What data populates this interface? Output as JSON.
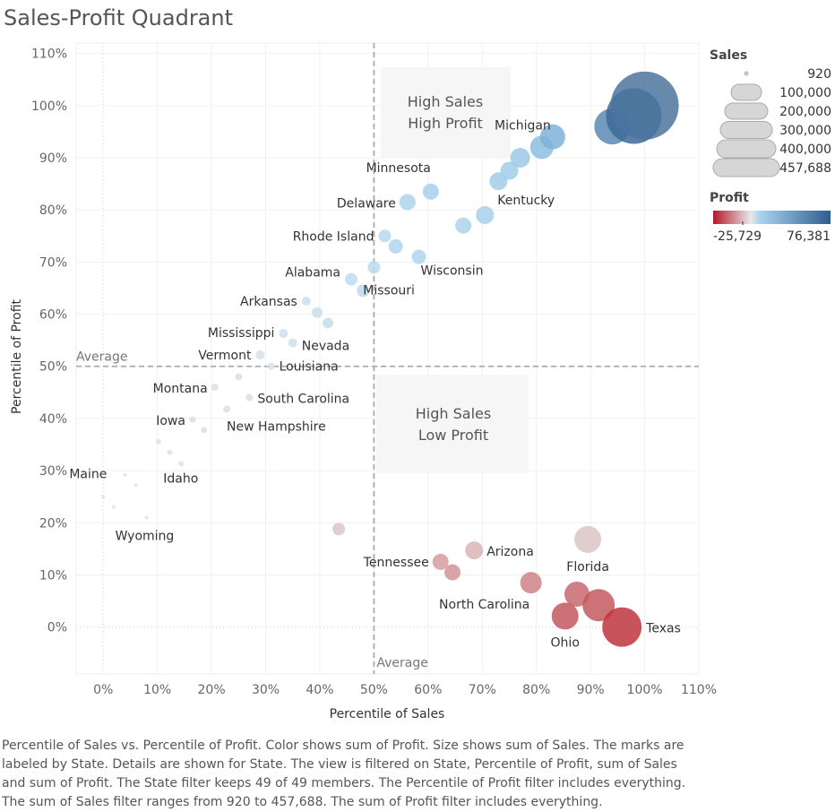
{
  "title": "Sales-Profit Quadrant",
  "caption": "Percentile of Sales vs. Percentile of Profit.  Color shows sum of Profit.  Size shows sum of Sales.  The marks are labeled by State.  Details are shown for State. The view is filtered on State, Percentile of Profit, sum of Sales and sum of Profit. The State filter keeps 49 of 49 members. The Percentile of Profit filter includes everything. The sum of Sales filter ranges from 920 to 457,688. The sum of Profit filter includes everything.",
  "legend": {
    "sales_title": "Sales",
    "sales_values": [
      "920",
      "100,000",
      "200,000",
      "300,000",
      "400,000",
      "457,688"
    ],
    "profit_title": "Profit",
    "profit_min": "-25,729",
    "profit_max": "76,381",
    "colors": {
      "negative": "#b2182b",
      "zero": "#e8e8e8",
      "light_positive": "#a8d2ec",
      "positive": "#2f5e8e"
    }
  },
  "chart_data": {
    "type": "scatter",
    "xlabel": "Percentile of Sales",
    "ylabel": "Percentile of Profit",
    "xlim": [
      -0.05,
      1.1
    ],
    "ylim": [
      -0.09,
      1.12
    ],
    "x_ticks": [
      "0%",
      "10%",
      "20%",
      "30%",
      "40%",
      "50%",
      "60%",
      "70%",
      "80%",
      "90%",
      "100%",
      "110%"
    ],
    "y_ticks": [
      "0%",
      "10%",
      "20%",
      "30%",
      "40%",
      "50%",
      "60%",
      "70%",
      "80%",
      "90%",
      "100%",
      "110%"
    ],
    "reference_lines": [
      {
        "axis": "x",
        "value": 0.5,
        "label": "Average"
      },
      {
        "axis": "y",
        "value": 0.5,
        "label": "Average"
      }
    ],
    "quadrant_labels": [
      {
        "line1": "High Sales",
        "line2": "High Profit"
      },
      {
        "line1": "High Sales",
        "line2": "Low Profit"
      }
    ],
    "points": [
      {
        "label": "",
        "x": 1.0,
        "y": 1.0,
        "r": 38,
        "color": "#4b749e"
      },
      {
        "label": "",
        "x": 0.98,
        "y": 0.98,
        "r": 31,
        "color": "#3d6a98"
      },
      {
        "label": "",
        "x": 0.94,
        "y": 0.96,
        "r": 20,
        "color": "#5b8ab5"
      },
      {
        "label": "Michigan",
        "x": 0.83,
        "y": 0.94,
        "r": 14,
        "color": "#7fb2d9"
      },
      {
        "label": "",
        "x": 0.81,
        "y": 0.92,
        "r": 13,
        "color": "#8bbde0"
      },
      {
        "label": "",
        "x": 0.77,
        "y": 0.9,
        "r": 11,
        "color": "#9bc8e6"
      },
      {
        "label": "",
        "x": 0.75,
        "y": 0.875,
        "r": 10,
        "color": "#a3cdea"
      },
      {
        "label": "",
        "x": 0.73,
        "y": 0.855,
        "r": 10,
        "color": "#a3cdea"
      },
      {
        "label": "Kentucky",
        "x": 0.705,
        "y": 0.79,
        "r": 10,
        "color": "#a8d0eb"
      },
      {
        "label": "",
        "x": 0.665,
        "y": 0.77,
        "r": 9,
        "color": "#abd2ec"
      },
      {
        "label": "Minnesota",
        "x": 0.605,
        "y": 0.835,
        "r": 9,
        "color": "#a8d0eb"
      },
      {
        "label": "Delaware",
        "x": 0.562,
        "y": 0.815,
        "r": 9,
        "color": "#add3ec"
      },
      {
        "label": "Wisconsin",
        "x": 0.583,
        "y": 0.71,
        "r": 8,
        "color": "#b0d5ed"
      },
      {
        "label": "",
        "x": 0.54,
        "y": 0.73,
        "r": 8,
        "color": "#b3d6ee"
      },
      {
        "label": "Rhode Island",
        "x": 0.52,
        "y": 0.75,
        "r": 7,
        "color": "#b6d8ee"
      },
      {
        "label": "",
        "x": 0.5,
        "y": 0.69,
        "r": 7,
        "color": "#b8d9ef"
      },
      {
        "label": "Missouri",
        "x": 0.48,
        "y": 0.645,
        "r": 7,
        "color": "#bcdaef"
      },
      {
        "label": "Alabama",
        "x": 0.458,
        "y": 0.667,
        "r": 7,
        "color": "#bedcef"
      },
      {
        "label": "",
        "x": 0.415,
        "y": 0.583,
        "r": 6,
        "color": "#c6dde9"
      },
      {
        "label": "",
        "x": 0.395,
        "y": 0.603,
        "r": 6,
        "color": "#c9dfea"
      },
      {
        "label": "Arkansas",
        "x": 0.375,
        "y": 0.625,
        "r": 5,
        "color": "#cce0ea"
      },
      {
        "label": "Nevada",
        "x": 0.35,
        "y": 0.545,
        "r": 5,
        "color": "#cfe0e9"
      },
      {
        "label": "Mississippi",
        "x": 0.333,
        "y": 0.563,
        "r": 5,
        "color": "#d1e1ea"
      },
      {
        "label": "Vermont",
        "x": 0.29,
        "y": 0.522,
        "r": 5,
        "color": "#d6e0e6"
      },
      {
        "label": "Louisiana",
        "x": 0.31,
        "y": 0.5,
        "r": 4,
        "color": "#d9e0e4"
      },
      {
        "label": "",
        "x": 0.25,
        "y": 0.48,
        "r": 4,
        "color": "#dcdfe1"
      },
      {
        "label": "Montana",
        "x": 0.206,
        "y": 0.46,
        "r": 4,
        "color": "#dedede"
      },
      {
        "label": "South Carolina",
        "x": 0.27,
        "y": 0.44,
        "r": 4,
        "color": "#dedede"
      },
      {
        "label": "New Hampshire",
        "x": 0.228,
        "y": 0.418,
        "r": 4,
        "color": "#dedede"
      },
      {
        "label": "Iowa",
        "x": 0.165,
        "y": 0.398,
        "r": 3.5,
        "color": "#dedede"
      },
      {
        "label": "",
        "x": 0.186,
        "y": 0.378,
        "r": 3.5,
        "color": "#dedede"
      },
      {
        "label": "",
        "x": 0.102,
        "y": 0.356,
        "r": 3,
        "color": "#e0e0e0"
      },
      {
        "label": "",
        "x": 0.123,
        "y": 0.335,
        "r": 3,
        "color": "#e0e0e0"
      },
      {
        "label": "Idaho",
        "x": 0.144,
        "y": 0.313,
        "r": 3,
        "color": "#e0e0e0"
      },
      {
        "label": "Maine",
        "x": 0.04,
        "y": 0.292,
        "r": 2,
        "color": "#e2e2e2"
      },
      {
        "label": "",
        "x": 0.06,
        "y": 0.272,
        "r": 2,
        "color": "#e2e2e2"
      },
      {
        "label": "",
        "x": 0.0,
        "y": 0.25,
        "r": 2,
        "color": "#e2e2e2"
      },
      {
        "label": "",
        "x": 0.019,
        "y": 0.23,
        "r": 2,
        "color": "#e2e2e2"
      },
      {
        "label": "Wyoming",
        "x": 0.08,
        "y": 0.21,
        "r": 2,
        "color": "#e2e2e2"
      },
      {
        "label": "",
        "x": 0.435,
        "y": 0.188,
        "r": 7,
        "color": "#dcc6c6"
      },
      {
        "label": "Arizona",
        "x": 0.685,
        "y": 0.147,
        "r": 10,
        "color": "#dcb4b6"
      },
      {
        "label": "Tennessee",
        "x": 0.623,
        "y": 0.125,
        "r": 9,
        "color": "#d69c9f"
      },
      {
        "label": "",
        "x": 0.645,
        "y": 0.105,
        "r": 9,
        "color": "#d29497"
      },
      {
        "label": "Florida",
        "x": 0.895,
        "y": 0.168,
        "r": 15,
        "color": "#dcc4c4"
      },
      {
        "label": "North Carolina",
        "x": 0.79,
        "y": 0.085,
        "r": 12,
        "color": "#cf8286"
      },
      {
        "label": "",
        "x": 0.875,
        "y": 0.063,
        "r": 14,
        "color": "#c86a6f"
      },
      {
        "label": "",
        "x": 0.915,
        "y": 0.042,
        "r": 18,
        "color": "#c45a60"
      },
      {
        "label": "Ohio",
        "x": 0.853,
        "y": 0.021,
        "r": 15,
        "color": "#c3585d"
      },
      {
        "label": "Texas",
        "x": 0.958,
        "y": 0.0,
        "r": 22,
        "color": "#c0353d"
      }
    ]
  }
}
